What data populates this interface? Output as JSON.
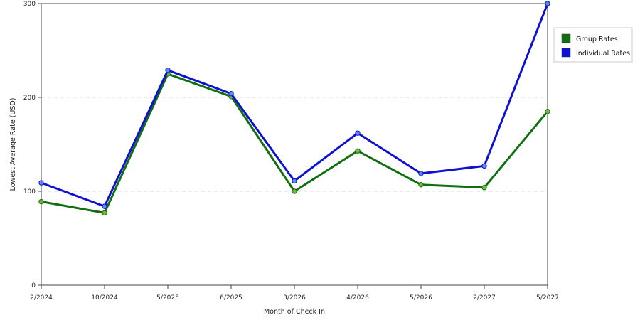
{
  "chart_data": {
    "type": "line",
    "title": "",
    "xlabel": "Month of Check In",
    "ylabel": "Lowest Average Rate (USD)",
    "categories": [
      "2/2024",
      "10/2024",
      "5/2025",
      "6/2025",
      "3/2026",
      "4/2026",
      "5/2026",
      "2/2027",
      "5/2027"
    ],
    "yticks": [
      0,
      100,
      200,
      300
    ],
    "ylim": [
      0,
      300
    ],
    "grid": true,
    "legend_position": "right",
    "series": [
      {
        "name": "Group Rates",
        "color": "#107010",
        "marker_color": "#7cb342",
        "values": [
          89,
          77,
          225,
          201,
          100,
          143,
          107,
          104,
          185
        ]
      },
      {
        "name": "Individual Rates",
        "color": "#1010d0",
        "marker_color": "#5a8ce8",
        "values": [
          109,
          84,
          229,
          204,
          111,
          162,
          119,
          127,
          300
        ]
      }
    ]
  }
}
